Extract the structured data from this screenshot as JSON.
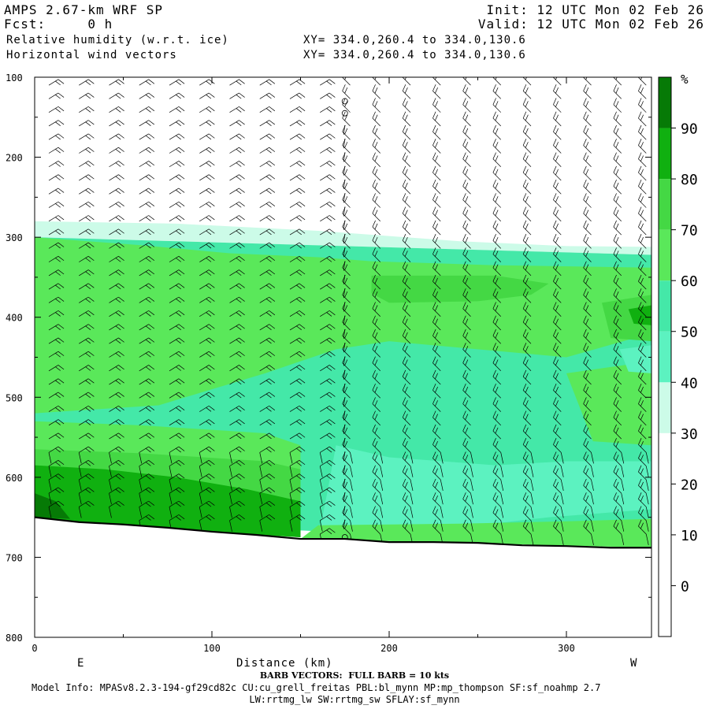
{
  "header": {
    "model": "AMPS 2.67-km WRF SP",
    "fcst": "Fcst:     0 h",
    "field1": "Relative humidity (w.r.t. ice)",
    "field2": "Horizontal wind vectors",
    "init": "Init: 12 UTC Mon 02 Feb 26",
    "valid": "Valid: 12 UTC Mon 02 Feb 26",
    "xy1": "XY= 334.0,260.4 to 334.0,130.6",
    "xy2": "XY= 334.0,260.4 to 334.0,130.6"
  },
  "footer": {
    "barb_note": "BARB VECTORS:  FULL BARB = 10 kts",
    "model_info": "Model Info: MPASv8.2.3-194-gf29cd82c CU:cu_grell_freitas PBL:bl_mynn MP:mp_thompson SF:sf_noahmp 2.7",
    "model_info2": "LW:rrtmg_lw SW:rrtmg_sw SFLAY:sf_mynn"
  },
  "chart_data": {
    "type": "heatmap",
    "title": "Relative humidity (w.r.t. ice)",
    "xlabel": "Distance (km)",
    "ylabel": "",
    "xlim": [
      0,
      348
    ],
    "ylim": [
      800,
      100
    ],
    "x_ticks": [
      0,
      100,
      200,
      300
    ],
    "y_ticks": [
      100,
      200,
      300,
      400,
      500,
      600,
      700,
      800
    ],
    "x_end_labels": {
      "left": "E",
      "right": "W"
    },
    "colorbar": {
      "unit": "%",
      "ticks": [
        0,
        10,
        20,
        30,
        40,
        50,
        60,
        70,
        80,
        90
      ],
      "bands": [
        {
          "from": 30,
          "to": 40,
          "color": "#ccfbe8"
        },
        {
          "from": 40,
          "to": 50,
          "color": "#5cf2c0"
        },
        {
          "from": 50,
          "to": 60,
          "color": "#44e8a8"
        },
        {
          "from": 60,
          "to": 70,
          "color": "#5ae85a"
        },
        {
          "from": 70,
          "to": 80,
          "color": "#44d844"
        },
        {
          "from": 80,
          "to": 90,
          "color": "#10b010"
        },
        {
          "from": 90,
          "to": 100,
          "color": "#067a06"
        }
      ]
    },
    "terrain_pressure": [
      [
        0,
        650
      ],
      [
        25,
        656
      ],
      [
        50,
        659
      ],
      [
        75,
        663
      ],
      [
        100,
        668
      ],
      [
        125,
        672
      ],
      [
        150,
        677
      ],
      [
        175,
        677
      ],
      [
        200,
        681
      ],
      [
        225,
        681
      ],
      [
        250,
        682
      ],
      [
        275,
        685
      ],
      [
        300,
        686
      ],
      [
        325,
        688
      ],
      [
        348,
        688
      ]
    ],
    "rh_regions": [
      {
        "rh": 35,
        "polygon": [
          [
            0,
            280
          ],
          [
            80,
            283
          ],
          [
            160,
            292
          ],
          [
            240,
            305
          ],
          [
            300,
            311
          ],
          [
            348,
            312
          ],
          [
            348,
            322
          ],
          [
            0,
            300
          ]
        ]
      },
      {
        "rh": 55,
        "polygon": [
          [
            0,
            300
          ],
          [
            348,
            322
          ],
          [
            348,
            688
          ],
          [
            0,
            650
          ]
        ]
      },
      {
        "rh": 65,
        "polygon": [
          [
            0,
            300
          ],
          [
            60,
            310
          ],
          [
            110,
            320
          ],
          [
            160,
            325
          ],
          [
            190,
            330
          ],
          [
            260,
            335
          ],
          [
            348,
            338
          ],
          [
            348,
            420
          ],
          [
            300,
            450
          ],
          [
            250,
            440
          ],
          [
            200,
            430
          ],
          [
            170,
            440
          ],
          [
            130,
            470
          ],
          [
            70,
            510
          ],
          [
            0,
            520
          ]
        ]
      },
      {
        "rh": 75,
        "polygon": [
          [
            190,
            348
          ],
          [
            260,
            348
          ],
          [
            290,
            358
          ],
          [
            280,
            372
          ],
          [
            250,
            380
          ],
          [
            200,
            382
          ],
          [
            190,
            370
          ]
        ]
      },
      {
        "rh": 75,
        "polygon": [
          [
            320,
            382
          ],
          [
            348,
            372
          ],
          [
            348,
            430
          ],
          [
            325,
            426
          ]
        ]
      },
      {
        "rh": 85,
        "polygon": [
          [
            335,
            390
          ],
          [
            348,
            385
          ],
          [
            348,
            410
          ],
          [
            338,
            408
          ]
        ]
      },
      {
        "rh": 65,
        "polygon": [
          [
            0,
            530
          ],
          [
            60,
            535
          ],
          [
            130,
            545
          ],
          [
            150,
            560
          ],
          [
            150,
            670
          ],
          [
            0,
            650
          ]
        ]
      },
      {
        "rh": 75,
        "polygon": [
          [
            0,
            565
          ],
          [
            60,
            570
          ],
          [
            130,
            580
          ],
          [
            150,
            590
          ],
          [
            150,
            675
          ],
          [
            0,
            655
          ]
        ]
      },
      {
        "rh": 85,
        "polygon": [
          [
            0,
            585
          ],
          [
            40,
            590
          ],
          [
            80,
            600
          ],
          [
            120,
            615
          ],
          [
            150,
            630
          ],
          [
            150,
            675
          ],
          [
            0,
            655
          ]
        ]
      },
      {
        "rh": 95,
        "polygon": [
          [
            0,
            620
          ],
          [
            12,
            630
          ],
          [
            20,
            652
          ],
          [
            0,
            650
          ]
        ]
      },
      {
        "rh": 45,
        "polygon": [
          [
            170,
            560
          ],
          [
            200,
            575
          ],
          [
            260,
            585
          ],
          [
            300,
            580
          ],
          [
            348,
            580
          ],
          [
            348,
            640
          ],
          [
            290,
            650
          ],
          [
            230,
            665
          ],
          [
            160,
            675
          ],
          [
            165,
            620
          ]
        ]
      },
      {
        "rh": 65,
        "polygon": [
          [
            160,
            660
          ],
          [
            240,
            658
          ],
          [
            300,
            655
          ],
          [
            348,
            652
          ],
          [
            348,
            688
          ],
          [
            150,
            677
          ]
        ]
      },
      {
        "rh": 65,
        "polygon": [
          [
            300,
            470
          ],
          [
            348,
            455
          ],
          [
            348,
            560
          ],
          [
            315,
            555
          ]
        ]
      },
      {
        "rh": 45,
        "polygon": [
          [
            330,
            440
          ],
          [
            348,
            435
          ],
          [
            348,
            470
          ],
          [
            335,
            468
          ]
        ]
      }
    ],
    "wind_barbs": {
      "columns_km": [
        8,
        25,
        42,
        59,
        76,
        93,
        110,
        127,
        144,
        161,
        178,
        195,
        212,
        229,
        246,
        263,
        280,
        297,
        314,
        331,
        345
      ],
      "calm_column_km": 175
    }
  }
}
